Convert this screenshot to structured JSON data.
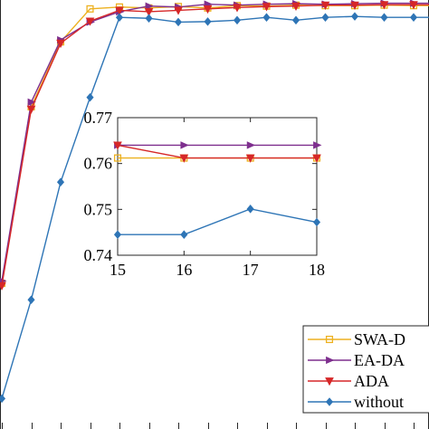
{
  "chart_data": [
    {
      "type": "line",
      "title": "",
      "xlabel": "",
      "ylabel": "",
      "x": [
        1,
        2,
        3,
        4,
        5,
        6,
        7,
        8,
        9,
        10,
        11,
        12,
        13,
        14,
        15,
        16,
        17,
        18
      ],
      "ylim": [
        0,
        1
      ],
      "series": [
        {
          "name": "SWA-D",
          "color": "#EDB120",
          "marker": "square",
          "values": [
            0.225,
            0.6,
            0.738,
            0.808,
            0.812,
            0.81,
            0.813,
            0.81,
            0.815,
            0.814,
            0.816,
            0.815,
            0.815,
            0.816,
            0.815,
            0.815,
            0.815,
            0.815
          ]
        },
        {
          "name": "EA-DA",
          "color": "#7E2F8E",
          "marker": "triangle-right",
          "values": [
            0.23,
            0.61,
            0.742,
            0.78,
            0.802,
            0.814,
            0.812,
            0.818,
            0.816,
            0.818,
            0.819,
            0.818,
            0.819,
            0.82,
            0.82,
            0.82,
            0.821,
            0.821
          ]
        },
        {
          "name": "ADA",
          "color": "#D62728",
          "marker": "triangle-down",
          "values": [
            0.22,
            0.595,
            0.735,
            0.782,
            0.805,
            0.802,
            0.805,
            0.808,
            0.811,
            0.813,
            0.814,
            0.816,
            0.816,
            0.817,
            0.817,
            0.817,
            0.818,
            0.818
          ]
        },
        {
          "name": "without",
          "color": "#2E75B6",
          "marker": "diamond",
          "values": [
            -0.02,
            0.19,
            0.44,
            0.62,
            0.79,
            0.788,
            0.78,
            0.781,
            0.784,
            0.79,
            0.784,
            0.79,
            0.792,
            0.79,
            0.79,
            0.79,
            0.792,
            0.792
          ]
        }
      ],
      "legend": "bottom-right"
    },
    {
      "type": "line",
      "title": "",
      "xlabel": "",
      "ylabel": "",
      "x": [
        15,
        16,
        17,
        18
      ],
      "xticks": [
        "15",
        "16",
        "17",
        "18"
      ],
      "yticks": [
        "0.74",
        "0.75",
        "0.76",
        "0.77"
      ],
      "xlim": [
        15,
        18
      ],
      "ylim": [
        0.74,
        0.77
      ],
      "series": [
        {
          "color": "#EDB120",
          "marker": "square",
          "values": [
            0.7612,
            0.7612,
            0.7612,
            0.7612
          ]
        },
        {
          "color": "#7E2F8E",
          "marker": "triangle-right",
          "values": [
            0.764,
            0.764,
            0.764,
            0.764
          ]
        },
        {
          "color": "#D62728",
          "marker": "triangle-down",
          "values": [
            0.764,
            0.7612,
            0.7612,
            0.7612
          ]
        },
        {
          "color": "#2E75B6",
          "marker": "diamond",
          "values": [
            0.7445,
            0.7445,
            0.7501,
            0.7472
          ]
        }
      ]
    }
  ]
}
